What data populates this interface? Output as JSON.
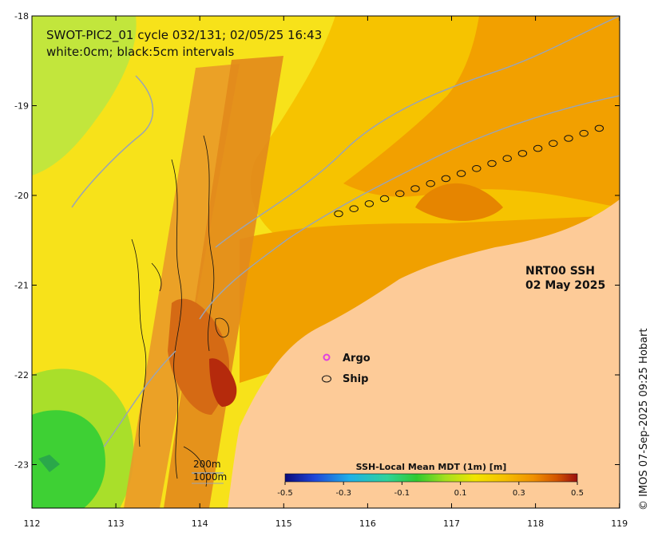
{
  "map": {
    "title_line1": "SWOT-PIC2_01 cycle 032/131; 02/05/25 16:43",
    "title_line2": "white:0cm; black:5cm intervals",
    "product_line1": "NRT00 SSH",
    "product_line2": "02 May 2025",
    "copyright": "© IMOS 07-Sep-2025 09:25 Hobart",
    "y_ticks": [
      "-18",
      "-19",
      "-20",
      "-21",
      "-22",
      "-23"
    ],
    "x_ticks": [
      "112",
      "113",
      "114",
      "115",
      "116",
      "117",
      "118",
      "119"
    ],
    "colorbar_title": "SSH-Local Mean MDT (1m) [m]",
    "colorbar_ticks": [
      "-0.5",
      "-0.3",
      "-0.1",
      "0.1",
      "0.3",
      "0.5"
    ],
    "colors": {
      "land": "#fdcb98",
      "colormap": [
        "#0a0a7a",
        "#1f45d8",
        "#1fb0e8",
        "#2fd39a",
        "#2fca2f",
        "#a6e01e",
        "#f2e400",
        "#f5c000",
        "#f09000",
        "#d35400",
        "#9b0f0f"
      ]
    },
    "legend": {
      "argo_label": "Argo",
      "ship_label": "Ship",
      "argo_color": "#e040e0"
    },
    "isobaths": {
      "label_200": "200m",
      "label_1000": "1000m"
    }
  }
}
